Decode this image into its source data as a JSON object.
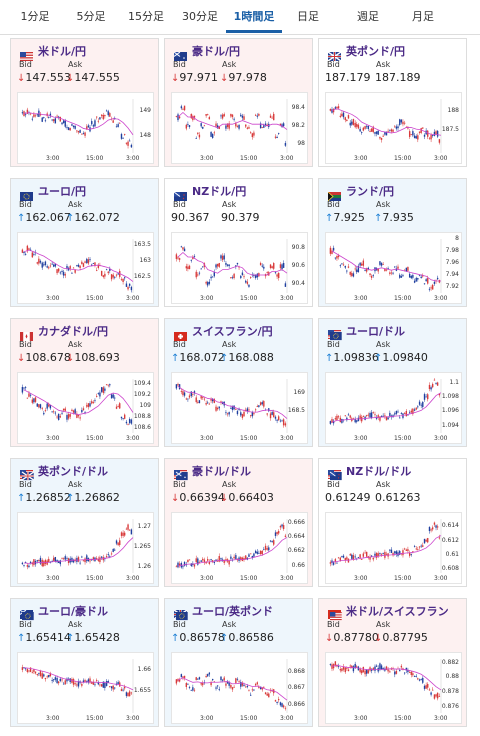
{
  "tabs": [
    "1分足",
    "5分足",
    "15分足",
    "30分足",
    "1時間足",
    "日足",
    "週足",
    "月足"
  ],
  "active_tab": 4,
  "labels": {
    "bid": "Bid",
    "ask": "Ask"
  },
  "colors": {
    "up": "#1c7fd4",
    "down": "#d83a3a",
    "pair": "#4b2a86",
    "ma": "#cc44cc",
    "candle_up": "#d83a3a",
    "candle_down": "#1f3f9f"
  },
  "x_ticks": [
    "3:00",
    "15:00",
    "3:00"
  ],
  "cards": [
    {
      "pair": "米ドル/円",
      "flag": "us",
      "bid": "147.553",
      "ask": "147.555",
      "dir": "down",
      "y_ticks": [
        "149",
        "148"
      ],
      "ylim": [
        147.3,
        149.5
      ],
      "trend": [
        148.9,
        149.0,
        148.8,
        148.9,
        148.7,
        148.8,
        148.6,
        148.7,
        148.5,
        148.3,
        148.4,
        148.2,
        148.1,
        148.3,
        148.5,
        148.7,
        148.8,
        148.9,
        148.6,
        148.4,
        148.0,
        147.7,
        147.5
      ]
    },
    {
      "pair": "豪ドル/円",
      "flag": "au",
      "bid": "97.971",
      "ask": "97.978",
      "dir": "down",
      "y_ticks": [
        "98.4",
        "98.2",
        "98"
      ],
      "ylim": [
        97.9,
        98.5
      ],
      "trend": [
        98.3,
        98.4,
        98.2,
        98.3,
        98.1,
        98.2,
        98.3,
        98.1,
        98.2,
        98.3,
        98.2,
        98.3,
        98.2,
        98.3,
        98.2,
        98.1,
        98.3,
        98.2,
        98.2,
        98.3,
        98.1,
        98.2,
        98.0
      ]
    },
    {
      "pair": "英ポンド/円",
      "flag": "gb",
      "bid": "187.179",
      "ask": "187.189",
      "dir": "flat",
      "y_ticks": [
        "188",
        "187.5"
      ],
      "ylim": [
        186.9,
        188.3
      ],
      "trend": [
        188.0,
        188.1,
        187.9,
        187.8,
        187.7,
        187.6,
        187.5,
        187.6,
        187.5,
        187.4,
        187.3,
        187.4,
        187.5,
        187.6,
        187.7,
        187.6,
        187.4,
        187.3,
        187.5,
        187.4,
        187.3,
        187.4,
        187.2
      ]
    },
    {
      "pair": "ユーロ/円",
      "flag": "eu",
      "bid": "162.067",
      "ask": "162.072",
      "dir": "up",
      "y_ticks": [
        "163.5",
        "163",
        "162.5"
      ],
      "ylim": [
        162.0,
        163.7
      ],
      "trend": [
        163.3,
        163.4,
        163.2,
        163.0,
        162.9,
        162.8,
        162.9,
        162.7,
        162.6,
        162.8,
        162.7,
        162.8,
        162.9,
        163.0,
        162.9,
        162.8,
        162.6,
        162.7,
        162.5,
        162.6,
        162.4,
        162.2,
        162.1
      ]
    },
    {
      "pair": "NZドル/円",
      "flag": "nz",
      "bid": "90.367",
      "ask": "90.379",
      "dir": "flat",
      "y_ticks": [
        "90.8",
        "90.6",
        "90.4"
      ],
      "ylim": [
        90.3,
        90.9
      ],
      "trend": [
        90.7,
        90.8,
        90.6,
        90.7,
        90.5,
        90.6,
        90.4,
        90.5,
        90.6,
        90.7,
        90.6,
        90.5,
        90.6,
        90.5,
        90.4,
        90.5,
        90.5,
        90.6,
        90.5,
        90.6,
        90.5,
        90.6,
        90.4
      ]
    },
    {
      "pair": "ランド/円",
      "flag": "za",
      "bid": "7.925",
      "ask": "7.935",
      "dir": "up",
      "y_ticks": [
        "8",
        "7.98",
        "7.96",
        "7.94",
        "7.92"
      ],
      "ylim": [
        7.91,
        8.0
      ],
      "trend": [
        7.98,
        7.97,
        7.96,
        7.95,
        7.94,
        7.95,
        7.96,
        7.95,
        7.94,
        7.95,
        7.96,
        7.95,
        7.94,
        7.95,
        7.94,
        7.95,
        7.94,
        7.93,
        7.94,
        7.93,
        7.92,
        7.93,
        7.93
      ]
    },
    {
      "pair": "カナダドル/円",
      "flag": "ca",
      "bid": "108.678",
      "ask": "108.693",
      "dir": "down",
      "y_ticks": [
        "109.4",
        "109.2",
        "109",
        "108.8",
        "108.6"
      ],
      "ylim": [
        108.5,
        109.5
      ],
      "trend": [
        109.3,
        109.2,
        109.1,
        109.0,
        108.9,
        109.0,
        108.9,
        108.8,
        108.9,
        108.8,
        108.9,
        108.8,
        108.9,
        109.0,
        109.1,
        109.2,
        109.3,
        109.4,
        109.2,
        109.0,
        108.8,
        108.7,
        108.7
      ]
    },
    {
      "pair": "スイスフラン/円",
      "flag": "ch",
      "bid": "168.072",
      "ask": "168.088",
      "dir": "up",
      "y_ticks": [
        "169",
        "168.5"
      ],
      "ylim": [
        167.9,
        169.4
      ],
      "trend": [
        169.2,
        169.0,
        168.9,
        169.0,
        168.8,
        168.9,
        168.7,
        168.8,
        168.6,
        168.7,
        168.5,
        168.6,
        168.5,
        168.4,
        168.5,
        168.4,
        168.6,
        168.7,
        168.5,
        168.4,
        168.3,
        168.2,
        168.1
      ]
    },
    {
      "pair": "ユーロ/ドル",
      "flag": "euus",
      "bid": "1.09836",
      "ask": "1.09840",
      "dir": "up",
      "y_ticks": [
        "1.1",
        "1.098",
        "1.096",
        "1.094"
      ],
      "ylim": [
        1.093,
        1.1005
      ],
      "trend": [
        1.0945,
        1.095,
        1.0948,
        1.0952,
        1.095,
        1.0948,
        1.095,
        1.0952,
        1.0955,
        1.0953,
        1.095,
        1.0952,
        1.0955,
        1.0958,
        1.0955,
        1.0957,
        1.096,
        1.0965,
        1.097,
        1.098,
        1.0995,
        1.1,
        1.0985
      ]
    },
    {
      "pair": "英ポンド/ドル",
      "flag": "gbus",
      "bid": "1.26852",
      "ask": "1.26862",
      "dir": "up",
      "y_ticks": [
        "1.27",
        "1.265",
        "1.26"
      ],
      "ylim": [
        1.2585,
        1.272
      ],
      "trend": [
        1.261,
        1.2608,
        1.2612,
        1.2615,
        1.261,
        1.2613,
        1.2617,
        1.2615,
        1.262,
        1.2618,
        1.2615,
        1.2618,
        1.262,
        1.2622,
        1.2618,
        1.262,
        1.2625,
        1.263,
        1.264,
        1.266,
        1.268,
        1.27,
        1.2688
      ]
    },
    {
      "pair": "豪ドル/ドル",
      "flag": "auus",
      "bid": "0.66394",
      "ask": "0.66403",
      "dir": "down",
      "y_ticks": [
        "0.666",
        "0.664",
        "0.662",
        "0.66"
      ],
      "ylim": [
        0.659,
        0.6665
      ],
      "trend": [
        0.66,
        0.6602,
        0.6605,
        0.6603,
        0.6606,
        0.6608,
        0.6605,
        0.6607,
        0.661,
        0.6608,
        0.6606,
        0.6609,
        0.6611,
        0.6609,
        0.6612,
        0.6615,
        0.6618,
        0.662,
        0.6625,
        0.6632,
        0.6645,
        0.6655,
        0.664
      ]
    },
    {
      "pair": "NZドル/ドル",
      "flag": "nzus",
      "bid": "0.61249",
      "ask": "0.61263",
      "dir": "flat",
      "y_ticks": [
        "0.614",
        "0.612",
        "0.61",
        "0.608"
      ],
      "ylim": [
        0.6075,
        0.615
      ],
      "trend": [
        0.609,
        0.6092,
        0.6095,
        0.6093,
        0.6097,
        0.6095,
        0.6098,
        0.61,
        0.6097,
        0.6099,
        0.6102,
        0.61,
        0.6103,
        0.6101,
        0.6104,
        0.6106,
        0.6103,
        0.6108,
        0.6112,
        0.612,
        0.6135,
        0.6142,
        0.6126
      ]
    },
    {
      "pair": "ユーロ/豪ドル",
      "flag": "euau",
      "bid": "1.65414",
      "ask": "1.65428",
      "dir": "up",
      "y_ticks": [
        "1.66",
        "1.655"
      ],
      "ylim": [
        1.65,
        1.6625
      ],
      "trend": [
        1.6605,
        1.6602,
        1.6598,
        1.659,
        1.6585,
        1.6588,
        1.658,
        1.6575,
        1.657,
        1.6575,
        1.6572,
        1.6568,
        1.657,
        1.6575,
        1.6572,
        1.657,
        1.6565,
        1.6568,
        1.6562,
        1.6565,
        1.6555,
        1.6545,
        1.6541
      ]
    },
    {
      "pair": "ユーロ/英ポンド",
      "flag": "eugb",
      "bid": "0.86578",
      "ask": "0.86586",
      "dir": "up",
      "y_ticks": [
        "0.868",
        "0.867",
        "0.866"
      ],
      "ylim": [
        0.8655,
        0.8688
      ],
      "trend": [
        0.8675,
        0.8678,
        0.8672,
        0.867,
        0.8675,
        0.8672,
        0.8678,
        0.8674,
        0.867,
        0.8676,
        0.8673,
        0.8671,
        0.8675,
        0.8672,
        0.867,
        0.8668,
        0.8672,
        0.867,
        0.8666,
        0.8668,
        0.8662,
        0.866,
        0.8658
      ]
    },
    {
      "pair": "米ドル/スイスフラン",
      "flag": "usch",
      "bid": "0.87780",
      "ask": "0.87795",
      "dir": "down",
      "y_ticks": [
        "0.882",
        "0.88",
        "0.878",
        "0.876"
      ],
      "ylim": [
        0.8752,
        0.8825
      ],
      "trend": [
        0.8815,
        0.8818,
        0.8812,
        0.881,
        0.8812,
        0.8814,
        0.881,
        0.8808,
        0.881,
        0.8812,
        0.8815,
        0.8812,
        0.881,
        0.8808,
        0.8812,
        0.881,
        0.8805,
        0.88,
        0.8795,
        0.8788,
        0.878,
        0.8775,
        0.8778
      ]
    }
  ]
}
